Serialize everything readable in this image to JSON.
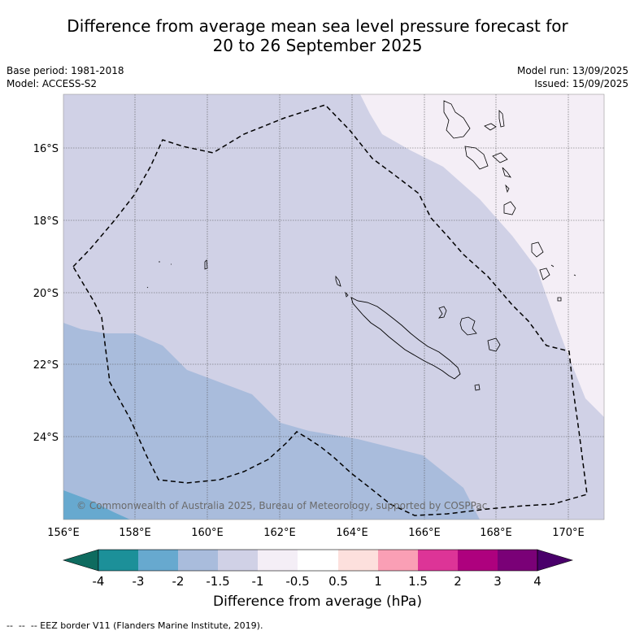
{
  "header": {
    "title_line1": "Difference from average mean sea level pressure forecast for",
    "title_line2": "20 to 26 September 2025",
    "base_period": "Base period: 1981-2018",
    "model": "Model: ACCESS-S2",
    "model_run": "Model run: 13/09/2025",
    "issued": "Issued: 15/09/2025"
  },
  "map": {
    "lon_labels": [
      "156°E",
      "158°E",
      "160°E",
      "162°E",
      "164°E",
      "166°E",
      "168°E",
      "170°E"
    ],
    "lat_labels": [
      "16°S",
      "18°S",
      "20°S",
      "22°S",
      "24°S"
    ],
    "copyright": "© Commonwealth of Australia 2025, Bureau of Meteorology, supported by COSPPac",
    "colors": {
      "band_-2_-1.5": "#a9bcdc",
      "band_-1.5_-1": "#d0d1e6",
      "band_-1_-0.5": "#f4eef6",
      "band_-3_-2": "#67a9cf"
    }
  },
  "colorbar": {
    "title": "Difference from average (hPa)",
    "tick_labels": [
      "-4",
      "-3",
      "-2",
      "-1.5",
      "-1",
      "-0.5",
      "0.5",
      "1",
      "1.5",
      "2",
      "3",
      "4"
    ],
    "colors": [
      "#0e6b5f",
      "#1c9099",
      "#67a9cf",
      "#a9bcdc",
      "#d0d1e6",
      "#f4eef6",
      "#ffffff",
      "#fde0dd",
      "#fa9fb5",
      "#dd3497",
      "#ae017e",
      "#7a0177",
      "#49006a"
    ]
  },
  "legend": {
    "eez_label": "-- EEZ border V11 (Flanders Marine Institute, 2019)."
  }
}
